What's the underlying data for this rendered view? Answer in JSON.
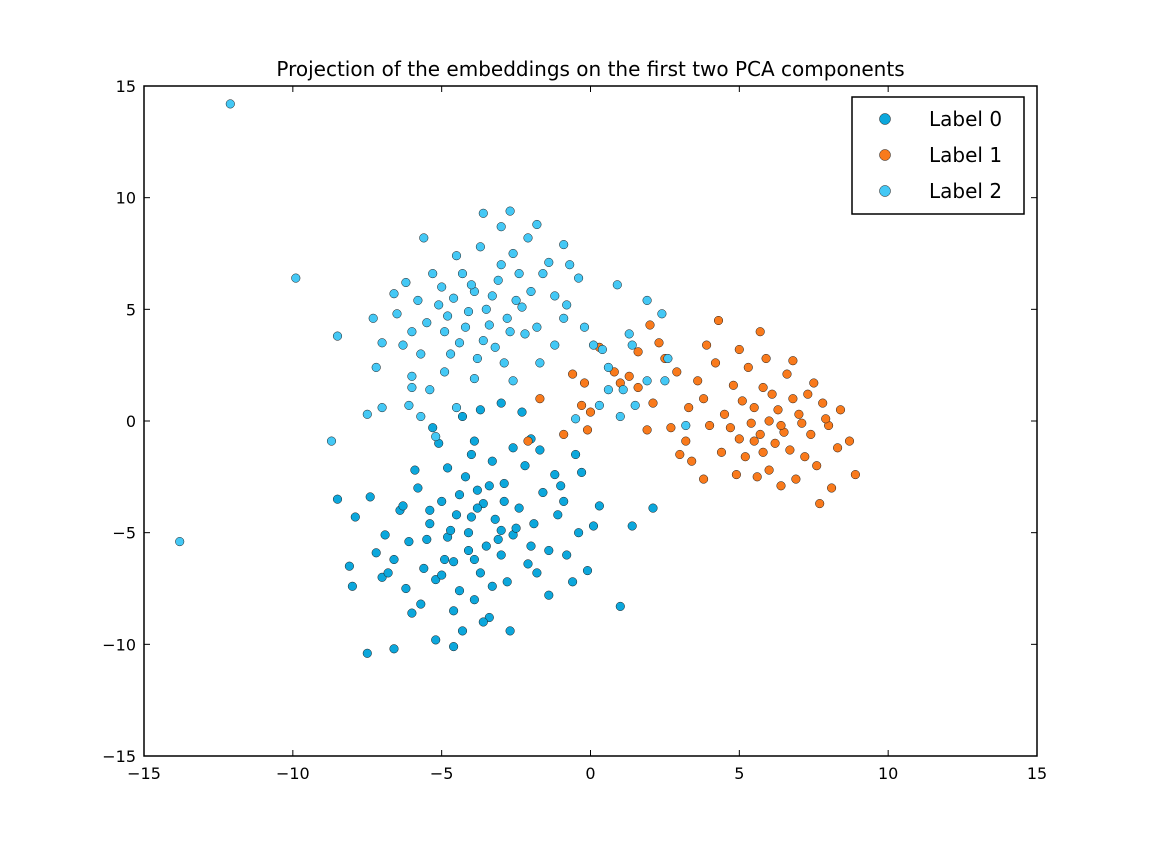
{
  "chart_data": {
    "type": "scatter",
    "title": "Projection of the embeddings on the first two PCA components",
    "xlabel": "",
    "ylabel": "",
    "xlim": [
      -15,
      15
    ],
    "ylim": [
      -15,
      15
    ],
    "xticks": [
      -15,
      -10,
      -5,
      0,
      5,
      10,
      15
    ],
    "yticks": [
      -15,
      -10,
      -5,
      0,
      5,
      10,
      15
    ],
    "xtick_labels": [
      "−15",
      "−10",
      "−5",
      "0",
      "5",
      "10",
      "15"
    ],
    "ytick_labels": [
      "−15",
      "−10",
      "−5",
      "0",
      "5",
      "10",
      "15"
    ],
    "grid": false,
    "legend_position": "top-right",
    "series": [
      {
        "name": "Label 0",
        "color": "#0ca7dc",
        "points": [
          [
            -4.5,
            -4.2
          ],
          [
            -3.8,
            -3.1
          ],
          [
            -4.1,
            -5.0
          ],
          [
            -3.2,
            -4.4
          ],
          [
            -5.0,
            -3.6
          ],
          [
            -2.9,
            -2.8
          ],
          [
            -3.5,
            -5.6
          ],
          [
            -4.8,
            -5.2
          ],
          [
            -4.2,
            -2.5
          ],
          [
            -3.0,
            -6.0
          ],
          [
            -2.4,
            -3.9
          ],
          [
            -5.4,
            -4.6
          ],
          [
            -3.7,
            -6.8
          ],
          [
            -4.9,
            -6.2
          ],
          [
            -2.6,
            -5.1
          ],
          [
            -5.8,
            -3.0
          ],
          [
            -3.3,
            -1.8
          ],
          [
            -4.0,
            -1.5
          ],
          [
            -2.2,
            -2.0
          ],
          [
            -5.2,
            -7.1
          ],
          [
            -4.4,
            -7.6
          ],
          [
            -3.9,
            -8.0
          ],
          [
            -2.8,
            -7.2
          ],
          [
            -1.9,
            -4.6
          ],
          [
            -1.6,
            -3.2
          ],
          [
            -6.1,
            -5.4
          ],
          [
            -6.4,
            -4.0
          ],
          [
            -5.6,
            -6.6
          ],
          [
            -4.6,
            -8.5
          ],
          [
            -3.4,
            -8.8
          ],
          [
            -2.1,
            -6.4
          ],
          [
            -1.4,
            -5.8
          ],
          [
            -0.9,
            -3.6
          ],
          [
            -1.2,
            -2.4
          ],
          [
            -5.9,
            -2.2
          ],
          [
            -6.6,
            -6.2
          ],
          [
            -6.9,
            -5.1
          ],
          [
            -7.4,
            -3.4
          ],
          [
            -8.5,
            -3.5
          ],
          [
            -7.9,
            -4.3
          ],
          [
            -8.0,
            -7.4
          ],
          [
            -8.1,
            -6.5
          ],
          [
            -7.0,
            -7.0
          ],
          [
            -7.5,
            -10.4
          ],
          [
            -6.6,
            -10.2
          ],
          [
            -5.2,
            -9.8
          ],
          [
            -4.6,
            -10.1
          ],
          [
            -4.3,
            -9.4
          ],
          [
            -2.7,
            -9.4
          ],
          [
            -1.4,
            -7.8
          ],
          [
            -0.6,
            -7.2
          ],
          [
            -0.1,
            -6.7
          ],
          [
            1.0,
            -8.3
          ],
          [
            1.4,
            -4.7
          ],
          [
            2.1,
            -3.9
          ],
          [
            0.3,
            -3.8
          ],
          [
            0.1,
            -4.7
          ],
          [
            -0.3,
            -2.3
          ],
          [
            -0.5,
            -1.5
          ],
          [
            -2.3,
            0.4
          ],
          [
            -3.0,
            0.8
          ],
          [
            -3.7,
            0.5
          ],
          [
            -4.3,
            0.2
          ],
          [
            -5.3,
            -0.3
          ],
          [
            -5.1,
            -1.0
          ],
          [
            -2.0,
            -0.8
          ],
          [
            -1.7,
            -1.3
          ],
          [
            -3.6,
            -3.7
          ],
          [
            -4.7,
            -4.9
          ],
          [
            -3.1,
            -5.3
          ],
          [
            -4.0,
            -4.3
          ],
          [
            -3.4,
            -2.9
          ],
          [
            -2.5,
            -4.8
          ],
          [
            -5.5,
            -5.3
          ],
          [
            -4.4,
            -3.3
          ],
          [
            -3.9,
            -6.2
          ],
          [
            -2.9,
            -3.6
          ],
          [
            -5.0,
            -6.9
          ],
          [
            -3.3,
            -7.4
          ],
          [
            -6.2,
            -7.5
          ],
          [
            -5.7,
            -8.2
          ],
          [
            -6.0,
            -8.6
          ],
          [
            -3.6,
            -9.0
          ],
          [
            -1.8,
            -6.8
          ],
          [
            -0.8,
            -6.0
          ],
          [
            -1.1,
            -4.2
          ],
          [
            -0.4,
            -5.0
          ],
          [
            -6.3,
            -3.8
          ],
          [
            -7.2,
            -5.9
          ],
          [
            -6.8,
            -6.8
          ],
          [
            -4.8,
            -2.1
          ],
          [
            -3.9,
            -0.9
          ],
          [
            -2.6,
            -1.2
          ],
          [
            -1.0,
            -2.9
          ],
          [
            -2.0,
            -5.6
          ],
          [
            -5.4,
            -4.0
          ],
          [
            -4.1,
            -5.8
          ],
          [
            -3.0,
            -4.9
          ],
          [
            -3.8,
            -3.9
          ],
          [
            -4.6,
            -6.3
          ]
        ]
      },
      {
        "name": "Label 1",
        "color": "#f97a1c",
        "points": [
          [
            6.0,
            0.0
          ],
          [
            6.5,
            -0.5
          ],
          [
            5.5,
            0.6
          ],
          [
            7.0,
            0.3
          ],
          [
            6.2,
            -1.0
          ],
          [
            5.0,
            -0.8
          ],
          [
            7.4,
            -0.6
          ],
          [
            6.8,
            1.0
          ],
          [
            5.8,
            1.5
          ],
          [
            7.8,
            0.8
          ],
          [
            4.5,
            0.3
          ],
          [
            4.8,
            1.6
          ],
          [
            6.6,
            2.1
          ],
          [
            5.3,
            2.4
          ],
          [
            7.2,
            -1.6
          ],
          [
            6.0,
            -2.2
          ],
          [
            5.2,
            -1.6
          ],
          [
            8.0,
            -0.2
          ],
          [
            8.3,
            -1.2
          ],
          [
            7.6,
            -2.0
          ],
          [
            6.9,
            -2.6
          ],
          [
            5.6,
            -2.5
          ],
          [
            4.4,
            -1.4
          ],
          [
            4.0,
            -0.2
          ],
          [
            3.8,
            1.0
          ],
          [
            4.2,
            2.6
          ],
          [
            5.0,
            3.2
          ],
          [
            5.9,
            2.8
          ],
          [
            6.8,
            2.7
          ],
          [
            7.5,
            1.7
          ],
          [
            8.4,
            0.5
          ],
          [
            8.7,
            -0.9
          ],
          [
            8.9,
            -2.4
          ],
          [
            8.1,
            -3.0
          ],
          [
            7.7,
            -3.7
          ],
          [
            6.4,
            -2.9
          ],
          [
            4.9,
            -2.4
          ],
          [
            3.8,
            -2.6
          ],
          [
            3.4,
            -1.8
          ],
          [
            3.2,
            -0.9
          ],
          [
            3.3,
            0.6
          ],
          [
            3.6,
            1.8
          ],
          [
            3.9,
            3.4
          ],
          [
            4.3,
            4.5
          ],
          [
            5.7,
            4.0
          ],
          [
            2.9,
            2.2
          ],
          [
            2.5,
            2.8
          ],
          [
            2.3,
            3.5
          ],
          [
            2.0,
            4.3
          ],
          [
            1.6,
            3.1
          ],
          [
            1.3,
            2.0
          ],
          [
            1.0,
            1.7
          ],
          [
            1.6,
            1.5
          ],
          [
            2.1,
            0.8
          ],
          [
            1.9,
            -0.4
          ],
          [
            2.7,
            -0.3
          ],
          [
            3.0,
            -1.5
          ],
          [
            0.8,
            2.2
          ],
          [
            0.3,
            3.3
          ],
          [
            -0.6,
            2.1
          ],
          [
            -0.2,
            1.7
          ],
          [
            -0.3,
            0.7
          ],
          [
            -1.7,
            1.0
          ],
          [
            -2.1,
            -0.9
          ],
          [
            -0.1,
            -0.4
          ],
          [
            -0.9,
            -0.6
          ],
          [
            0.0,
            0.4
          ],
          [
            5.4,
            -0.1
          ],
          [
            6.3,
            0.5
          ],
          [
            7.1,
            -0.1
          ],
          [
            5.7,
            -0.6
          ],
          [
            6.7,
            -1.3
          ],
          [
            5.1,
            0.9
          ],
          [
            7.3,
            1.2
          ],
          [
            6.1,
            1.2
          ],
          [
            4.7,
            -0.3
          ],
          [
            5.8,
            -1.4
          ],
          [
            7.9,
            0.1
          ],
          [
            6.4,
            -0.2
          ],
          [
            5.5,
            -0.9
          ]
        ]
      },
      {
        "name": "Label 2",
        "color": "#44c8f5",
        "points": [
          [
            -3.5,
            5.0
          ],
          [
            -4.2,
            4.2
          ],
          [
            -2.8,
            4.6
          ],
          [
            -3.9,
            5.8
          ],
          [
            -4.6,
            5.5
          ],
          [
            -3.1,
            6.3
          ],
          [
            -2.5,
            5.4
          ],
          [
            -4.9,
            4.0
          ],
          [
            -3.6,
            3.6
          ],
          [
            -2.2,
            3.9
          ],
          [
            -5.1,
            5.2
          ],
          [
            -4.3,
            6.6
          ],
          [
            -3.0,
            7.0
          ],
          [
            -2.0,
            5.8
          ],
          [
            -5.5,
            4.4
          ],
          [
            -3.8,
            2.8
          ],
          [
            -2.9,
            2.6
          ],
          [
            -4.7,
            3.0
          ],
          [
            -1.8,
            4.2
          ],
          [
            -1.6,
            6.6
          ],
          [
            -2.6,
            7.5
          ],
          [
            -3.7,
            7.8
          ],
          [
            -4.5,
            7.4
          ],
          [
            -5.3,
            6.6
          ],
          [
            -5.8,
            5.4
          ],
          [
            -6.0,
            4.0
          ],
          [
            -5.7,
            3.0
          ],
          [
            -4.9,
            2.2
          ],
          [
            -3.9,
            1.9
          ],
          [
            -2.6,
            1.8
          ],
          [
            -1.7,
            2.6
          ],
          [
            -1.2,
            3.4
          ],
          [
            -0.9,
            4.6
          ],
          [
            -1.2,
            5.6
          ],
          [
            -1.4,
            7.1
          ],
          [
            -2.1,
            8.2
          ],
          [
            -3.0,
            8.7
          ],
          [
            -3.6,
            9.3
          ],
          [
            -2.7,
            9.4
          ],
          [
            -1.8,
            8.8
          ],
          [
            -0.9,
            7.9
          ],
          [
            -0.7,
            7.0
          ],
          [
            -0.4,
            6.4
          ],
          [
            -0.8,
            5.2
          ],
          [
            -0.2,
            4.2
          ],
          [
            0.1,
            3.4
          ],
          [
            0.4,
            3.2
          ],
          [
            0.6,
            2.4
          ],
          [
            1.3,
            3.9
          ],
          [
            1.4,
            3.4
          ],
          [
            2.4,
            4.8
          ],
          [
            1.9,
            5.4
          ],
          [
            0.9,
            6.1
          ],
          [
            2.6,
            2.8
          ],
          [
            1.1,
            1.4
          ],
          [
            1.0,
            0.2
          ],
          [
            1.9,
            1.8
          ],
          [
            2.5,
            1.8
          ],
          [
            3.2,
            -0.2
          ],
          [
            1.5,
            0.7
          ],
          [
            0.6,
            1.4
          ],
          [
            0.3,
            0.7
          ],
          [
            -0.5,
            0.1
          ],
          [
            -6.3,
            3.4
          ],
          [
            -6.5,
            4.8
          ],
          [
            -6.6,
            5.7
          ],
          [
            -6.2,
            6.2
          ],
          [
            -5.6,
            8.2
          ],
          [
            -7.0,
            3.5
          ],
          [
            -7.2,
            2.4
          ],
          [
            -7.3,
            4.6
          ],
          [
            -8.5,
            3.8
          ],
          [
            -6.0,
            2.0
          ],
          [
            -6.1,
            0.7
          ],
          [
            -5.7,
            0.2
          ],
          [
            -5.2,
            -0.7
          ],
          [
            -5.4,
            1.4
          ],
          [
            -4.5,
            0.6
          ],
          [
            -6.0,
            1.5
          ],
          [
            -7.5,
            0.3
          ],
          [
            -7.0,
            0.6
          ],
          [
            -8.7,
            -0.9
          ],
          [
            -9.9,
            6.4
          ],
          [
            -12.1,
            14.2
          ],
          [
            -13.8,
            -5.4
          ],
          [
            -4.1,
            4.9
          ],
          [
            -3.3,
            5.6
          ],
          [
            -4.4,
            3.5
          ],
          [
            -2.7,
            4.0
          ],
          [
            -3.4,
            4.3
          ],
          [
            -4.8,
            4.7
          ],
          [
            -2.3,
            5.1
          ],
          [
            -3.2,
            3.3
          ],
          [
            -4.0,
            6.1
          ],
          [
            -5.0,
            6.0
          ],
          [
            -2.4,
            6.6
          ]
        ]
      }
    ]
  }
}
